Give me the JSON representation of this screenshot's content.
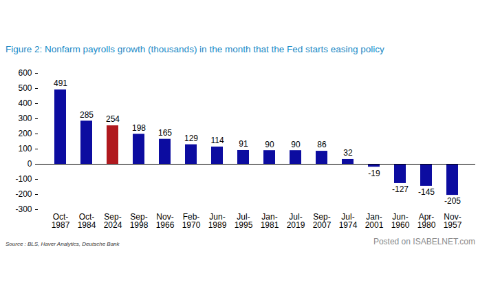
{
  "chart_data": {
    "type": "bar",
    "title": "Figure 2: Nonfarm payrolls growth (thousands) in the month that the Fed starts easing policy",
    "categories": [
      "Oct-1987",
      "Oct-1984",
      "Sep-2024",
      "Sep-1998",
      "Nov-1966",
      "Feb-1970",
      "Jun-1989",
      "Jul-1995",
      "Jan-1981",
      "Jul-2019",
      "Sep-2007",
      "Jul-1974",
      "Jan-2001",
      "Jun-1960",
      "Apr-1980",
      "Nov-1957"
    ],
    "values": [
      491,
      285,
      254,
      198,
      165,
      129,
      114,
      91,
      90,
      90,
      86,
      32,
      -19,
      -127,
      -145,
      -205
    ],
    "colors": [
      "#0c0ca0",
      "#0c0ca0",
      "#b0191e",
      "#0c0ca0",
      "#0c0ca0",
      "#0c0ca0",
      "#0c0ca0",
      "#0c0ca0",
      "#0c0ca0",
      "#0c0ca0",
      "#0c0ca0",
      "#0c0ca0",
      "#0c0ca0",
      "#0c0ca0",
      "#0c0ca0",
      "#0c0ca0"
    ],
    "ylim": [
      -300,
      600
    ],
    "yticks": [
      -300,
      -200,
      -100,
      0,
      100,
      200,
      300,
      400,
      500,
      600
    ],
    "grid": false,
    "data_labels": true,
    "source": "Source : BLS, Haver Analytics, Deutsche Bank",
    "watermark": "Posted on ISABELNET.com"
  }
}
